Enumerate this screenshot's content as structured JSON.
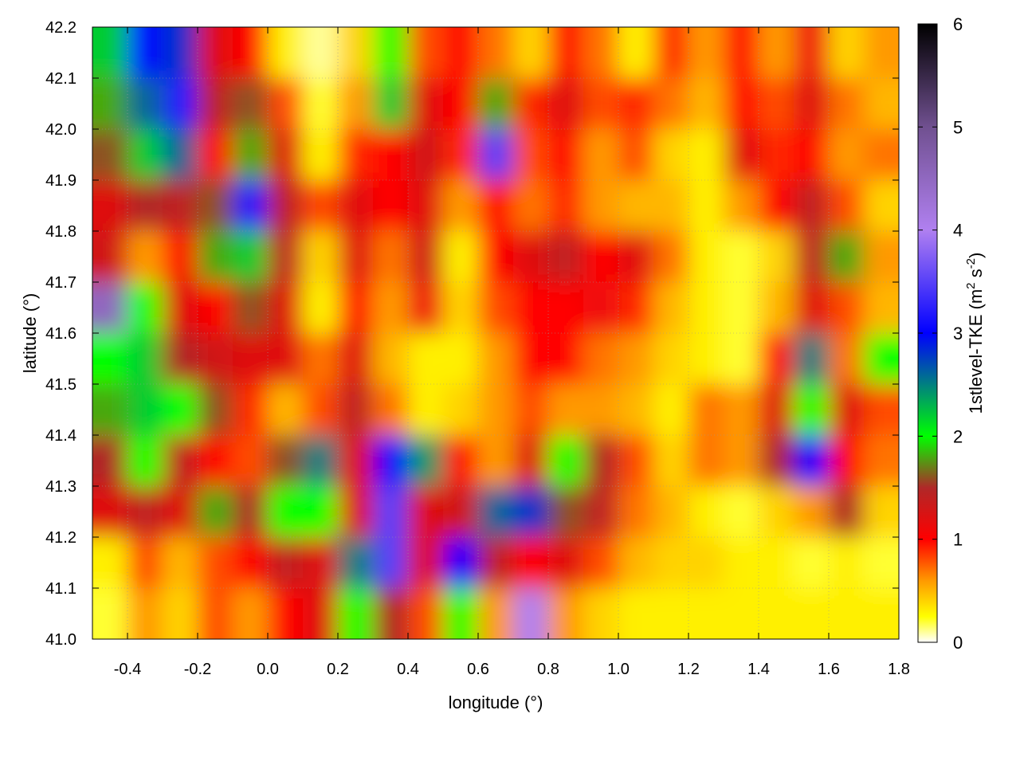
{
  "chart_data": {
    "type": "heatmap",
    "xlabel": "longitude (°)",
    "ylabel": "latitude (°)",
    "colorbar_label": "1stlevel-TKE (m² s⁻²)",
    "colorbar_label_parts": {
      "base": "1stlevel-TKE (m",
      "sup1": "2",
      "mid": " s",
      "sup2": "-2",
      "end": ")"
    },
    "xlim": [
      -0.5,
      1.8
    ],
    "ylim": [
      41.0,
      42.2
    ],
    "clim": [
      0,
      6
    ],
    "xticks": [
      "-0.4",
      "-0.2",
      "0.0",
      "0.2",
      "0.4",
      "0.6",
      "0.8",
      "1.0",
      "1.2",
      "1.4",
      "1.6",
      "1.8"
    ],
    "yticks": [
      "41.0",
      "41.1",
      "41.2",
      "41.3",
      "41.4",
      "41.5",
      "41.6",
      "41.7",
      "41.8",
      "41.9",
      "42.0",
      "42.1",
      "42.2"
    ],
    "cticks": [
      "0",
      "1",
      "2",
      "3",
      "4",
      "5",
      "6"
    ],
    "grid": true,
    "palette": [
      [
        0,
        "#ffffff"
      ],
      [
        0.25,
        "#ffff00"
      ],
      [
        0.6,
        "#ff9900"
      ],
      [
        1.0,
        "#ff0000"
      ],
      [
        1.5,
        "#b02828"
      ],
      [
        2.0,
        "#00ff00"
      ],
      [
        2.5,
        "#008080"
      ],
      [
        3.0,
        "#0000ff"
      ],
      [
        4.0,
        "#b080f0"
      ],
      [
        5.0,
        "#705090"
      ],
      [
        6.0,
        "#000000"
      ]
    ],
    "x": [
      -0.45,
      -0.35,
      -0.25,
      -0.15,
      -0.05,
      0.05,
      0.15,
      0.25,
      0.35,
      0.45,
      0.55,
      0.65,
      0.75,
      0.85,
      0.95,
      1.05,
      1.15,
      1.25,
      1.35,
      1.45,
      1.55,
      1.65,
      1.75
    ],
    "y": [
      42.15,
      42.05,
      41.95,
      41.85,
      41.75,
      41.65,
      41.55,
      41.45,
      41.35,
      41.25,
      41.15,
      41.05
    ],
    "z": [
      [
        2.2,
        3.0,
        2.8,
        1.2,
        1.0,
        0.3,
        0.1,
        0.4,
        2.0,
        0.8,
        1.0,
        0.7,
        0.4,
        1.0,
        0.7,
        0.3,
        0.9,
        0.6,
        1.0,
        0.6,
        1.1,
        0.4,
        0.6
      ],
      [
        1.8,
        2.6,
        3.2,
        1.4,
        1.6,
        0.8,
        0.2,
        0.6,
        2.2,
        1.2,
        1.0,
        1.8,
        0.9,
        1.2,
        0.8,
        0.9,
        0.7,
        0.5,
        1.0,
        0.8,
        1.2,
        0.7,
        0.5
      ],
      [
        1.6,
        2.2,
        2.6,
        1.0,
        1.8,
        1.2,
        0.3,
        0.9,
        1.0,
        1.3,
        0.9,
        3.5,
        0.8,
        1.0,
        0.6,
        0.8,
        0.4,
        0.3,
        1.2,
        0.9,
        1.0,
        0.6,
        0.7
      ],
      [
        1.2,
        1.5,
        1.4,
        1.6,
        3.2,
        1.4,
        0.8,
        1.2,
        1.0,
        1.2,
        0.6,
        1.0,
        0.7,
        0.9,
        0.6,
        0.5,
        0.5,
        0.3,
        0.6,
        1.0,
        1.4,
        0.8,
        0.4
      ],
      [
        1.3,
        0.6,
        1.0,
        1.8,
        2.2,
        1.4,
        0.4,
        1.2,
        0.7,
        1.3,
        0.3,
        1.0,
        1.2,
        1.4,
        1.0,
        1.2,
        0.7,
        0.3,
        0.2,
        0.4,
        1.4,
        1.8,
        0.6
      ],
      [
        4.5,
        2.0,
        1.2,
        1.0,
        1.6,
        1.2,
        0.3,
        1.0,
        0.6,
        1.1,
        0.4,
        0.8,
        1.0,
        1.0,
        1.1,
        0.9,
        0.5,
        0.3,
        0.2,
        0.5,
        1.2,
        0.8,
        0.5
      ],
      [
        2.0,
        2.2,
        1.5,
        1.3,
        1.2,
        1.2,
        0.7,
        1.2,
        0.5,
        0.3,
        0.3,
        0.6,
        1.0,
        1.0,
        0.7,
        0.6,
        0.4,
        0.3,
        0.2,
        1.0,
        2.5,
        0.7,
        2.0
      ],
      [
        1.8,
        2.2,
        2.0,
        1.6,
        0.9,
        0.5,
        0.8,
        1.4,
        0.7,
        0.3,
        0.4,
        0.6,
        0.8,
        0.6,
        0.6,
        0.5,
        0.3,
        0.7,
        0.6,
        1.2,
        2.0,
        1.2,
        0.8
      ],
      [
        1.5,
        2.0,
        1.4,
        1.0,
        0.8,
        1.6,
        2.5,
        1.2,
        3.0,
        2.4,
        1.0,
        0.6,
        1.2,
        2.0,
        1.5,
        0.8,
        0.4,
        0.7,
        0.6,
        1.5,
        3.0,
        1.0,
        0.7
      ],
      [
        1.2,
        1.4,
        1.2,
        1.8,
        1.5,
        2.0,
        2.0,
        1.2,
        3.5,
        1.2,
        1.3,
        2.6,
        2.8,
        1.6,
        1.4,
        0.7,
        0.5,
        0.3,
        0.2,
        0.4,
        0.6,
        1.5,
        0.4
      ],
      [
        0.3,
        0.8,
        0.5,
        0.8,
        1.0,
        1.4,
        1.2,
        2.5,
        3.5,
        1.2,
        3.0,
        1.4,
        1.0,
        1.2,
        0.8,
        0.5,
        0.4,
        0.4,
        0.3,
        0.3,
        0.2,
        0.3,
        0.2
      ],
      [
        0.2,
        0.6,
        0.4,
        0.8,
        0.6,
        1.0,
        1.2,
        2.0,
        1.5,
        0.8,
        2.0,
        0.6,
        4.0,
        0.6,
        0.4,
        0.3,
        0.3,
        0.3,
        0.3,
        0.3,
        0.3,
        0.3,
        0.3
      ]
    ]
  }
}
